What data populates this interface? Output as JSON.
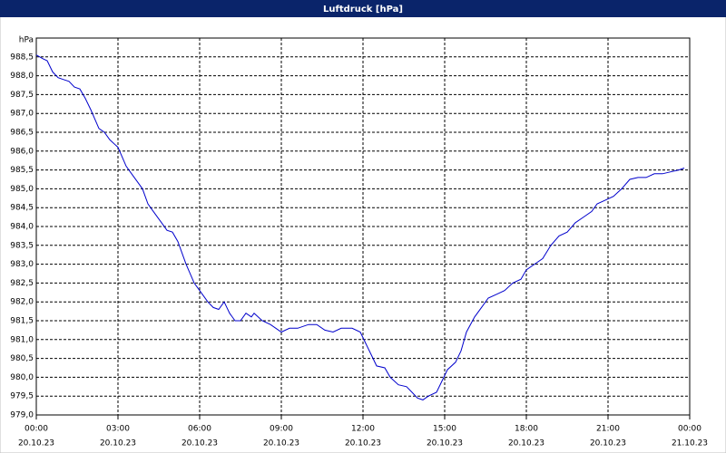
{
  "chart_data": {
    "type": "line",
    "title": "Luftdruck [hPa]",
    "ylabel": "hPa",
    "x": [
      0,
      0.25,
      0.4,
      0.6,
      0.8,
      1.0,
      1.2,
      1.4,
      1.6,
      1.8,
      2.0,
      2.3,
      2.5,
      2.7,
      3.0,
      3.3,
      3.5,
      3.7,
      3.9,
      4.1,
      4.3,
      4.6,
      4.8,
      5.0,
      5.2,
      5.5,
      5.8,
      6.0,
      6.3,
      6.5,
      6.7,
      6.9,
      7.1,
      7.3,
      7.5,
      7.7,
      7.9,
      8.0,
      8.3,
      8.6,
      9.0,
      9.3,
      9.6,
      10.0,
      10.3,
      10.6,
      10.9,
      11.2,
      11.6,
      11.9,
      12.1,
      12.3,
      12.5,
      12.8,
      13.0,
      13.3,
      13.6,
      13.8,
      14.0,
      14.2,
      14.4,
      14.7,
      14.9,
      15.1,
      15.4,
      15.6,
      15.8,
      16.1,
      16.4,
      16.6,
      16.9,
      17.2,
      17.5,
      17.8,
      18.0,
      18.3,
      18.6,
      18.9,
      19.2,
      19.5,
      19.8,
      20.1,
      20.4,
      20.6,
      20.9,
      21.2,
      21.5,
      21.8,
      22.1,
      22.4,
      22.7,
      23.0,
      23.3,
      23.6,
      23.8
    ],
    "series": [
      {
        "name": "Luftdruck",
        "color": "#0000cc",
        "values": [
          988.55,
          988.45,
          988.4,
          988.1,
          987.95,
          987.9,
          987.85,
          987.7,
          987.65,
          987.4,
          987.1,
          986.6,
          986.5,
          986.3,
          986.1,
          985.6,
          985.4,
          985.2,
          985.0,
          984.6,
          984.4,
          984.1,
          983.9,
          983.85,
          983.6,
          983.0,
          982.5,
          982.3,
          982.0,
          981.85,
          981.8,
          982.0,
          981.7,
          981.5,
          981.5,
          981.7,
          981.6,
          981.7,
          981.5,
          981.4,
          981.2,
          981.3,
          981.3,
          981.4,
          981.4,
          981.25,
          981.2,
          981.3,
          981.3,
          981.2,
          980.9,
          980.6,
          980.3,
          980.25,
          980.0,
          979.8,
          979.75,
          979.6,
          979.45,
          979.4,
          979.5,
          979.6,
          979.9,
          980.2,
          980.4,
          980.7,
          981.2,
          981.6,
          981.9,
          982.1,
          982.2,
          982.3,
          982.5,
          982.6,
          982.85,
          983.0,
          983.15,
          983.5,
          983.75,
          983.85,
          984.1,
          984.25,
          984.4,
          984.6,
          984.7,
          984.8,
          985.0,
          985.25,
          985.3,
          985.3,
          985.4,
          985.4,
          985.45,
          985.5,
          985.55
        ]
      }
    ],
    "xlim": [
      0,
      24
    ],
    "xticks": [
      {
        "value": 0,
        "label": [
          "00:00",
          "20.10.23"
        ]
      },
      {
        "value": 3,
        "label": [
          "03:00",
          "20.10.23"
        ]
      },
      {
        "value": 6,
        "label": [
          "06:00",
          "20.10.23"
        ]
      },
      {
        "value": 9,
        "label": [
          "09:00",
          "20.10.23"
        ]
      },
      {
        "value": 12,
        "label": [
          "12:00",
          "20.10.23"
        ]
      },
      {
        "value": 15,
        "label": [
          "15:00",
          "20.10.23"
        ]
      },
      {
        "value": 18,
        "label": [
          "18:00",
          "20.10.23"
        ]
      },
      {
        "value": 21,
        "label": [
          "21:00",
          "20.10.23"
        ]
      },
      {
        "value": 24,
        "label": [
          "00:00",
          "21.10.23"
        ]
      }
    ],
    "ylim": [
      979,
      989
    ],
    "yticks": [
      {
        "value": 979,
        "label": "979,0"
      },
      {
        "value": 979.5,
        "label": "979,5"
      },
      {
        "value": 980,
        "label": "980,0"
      },
      {
        "value": 980.5,
        "label": "980,5"
      },
      {
        "value": 981,
        "label": "981,0"
      },
      {
        "value": 981.5,
        "label": "981,5"
      },
      {
        "value": 982,
        "label": "982,0"
      },
      {
        "value": 982.5,
        "label": "982,5"
      },
      {
        "value": 983,
        "label": "983,0"
      },
      {
        "value": 983.5,
        "label": "983,5"
      },
      {
        "value": 984,
        "label": "984,0"
      },
      {
        "value": 984.5,
        "label": "984,5"
      },
      {
        "value": 985,
        "label": "985,0"
      },
      {
        "value": 985.5,
        "label": "985,5"
      },
      {
        "value": 986,
        "label": "986,0"
      },
      {
        "value": 986.5,
        "label": "986,5"
      },
      {
        "value": 987,
        "label": "987,0"
      },
      {
        "value": 987.5,
        "label": "987,5"
      },
      {
        "value": 988,
        "label": "988,0"
      },
      {
        "value": 988.5,
        "label": "988,5"
      }
    ],
    "grid": true
  }
}
